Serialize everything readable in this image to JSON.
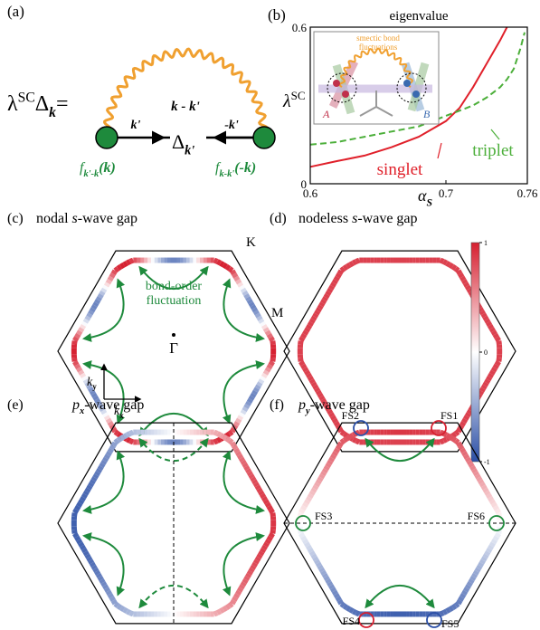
{
  "panel_a": {
    "label": "(a)",
    "eq": [
      "λ",
      "SC",
      "Δ",
      "k",
      "="
    ],
    "wavy_label": "k - k'",
    "left_arrow_label": "k'",
    "right_arrow_label": "-k'",
    "center": [
      "Δ",
      "k'"
    ],
    "left_vertex": [
      "f",
      "k'-k",
      "(k)"
    ],
    "right_vertex": [
      "f",
      "k-k'",
      "(-k)"
    ]
  },
  "chart_data": {
    "type": "line",
    "label": "(b)",
    "title": "eigenvalue",
    "xlabel": [
      "α",
      "S"
    ],
    "ylabel": [
      "λ",
      "SC"
    ],
    "x": [
      0.6,
      0.62,
      0.64,
      0.66,
      0.68,
      0.7,
      0.71,
      0.72,
      0.73,
      0.74,
      0.745,
      0.75,
      0.755,
      0.758
    ],
    "series": [
      {
        "name": "singlet",
        "color": "#e0202a",
        "dashed": false,
        "values": [
          0.065,
          0.087,
          0.108,
          0.14,
          0.18,
          0.24,
          0.29,
          0.37,
          0.46,
          0.55,
          0.6,
          null,
          null,
          null
        ]
      },
      {
        "name": "triplet",
        "color": "#4caf3a",
        "dashed": true,
        "values": [
          0.15,
          0.16,
          0.18,
          0.2,
          0.22,
          0.26,
          0.28,
          0.3,
          0.33,
          0.37,
          0.4,
          0.44,
          0.52,
          0.58
        ]
      }
    ],
    "xlim": [
      0.6,
      0.76
    ],
    "xticks": [
      0.6,
      0.7,
      0.76
    ],
    "ylim": [
      0,
      0.6
    ],
    "yticks": [
      0,
      0.6
    ],
    "inset": {
      "text": [
        "smectic bond",
        "fluctuations"
      ],
      "A": "A",
      "B": "B"
    }
  },
  "panel_c": {
    "label": "(c)",
    "title": [
      "nodal ",
      "s",
      "-wave gap"
    ],
    "K": "K",
    "M": "M",
    "Gamma": "Γ",
    "fluct": [
      "bond-order",
      "fluctuation"
    ],
    "ky": [
      "k",
      "y"
    ],
    "kx": [
      "k",
      "x"
    ]
  },
  "panel_d": {
    "label": "(d)",
    "title": [
      "nodeless ",
      "s",
      "-wave gap"
    ]
  },
  "colorbar": {
    "ticks": [
      1,
      0,
      -1
    ]
  },
  "panel_e": {
    "label": "(e)",
    "title": [
      "p",
      "x",
      "-wave gap"
    ]
  },
  "panel_f": {
    "label": "(f)",
    "title": [
      "p",
      "y",
      "-wave gap"
    ],
    "fs": [
      "FS1",
      "FS2",
      "FS3",
      "FS4",
      "FS5",
      "FS6"
    ]
  }
}
